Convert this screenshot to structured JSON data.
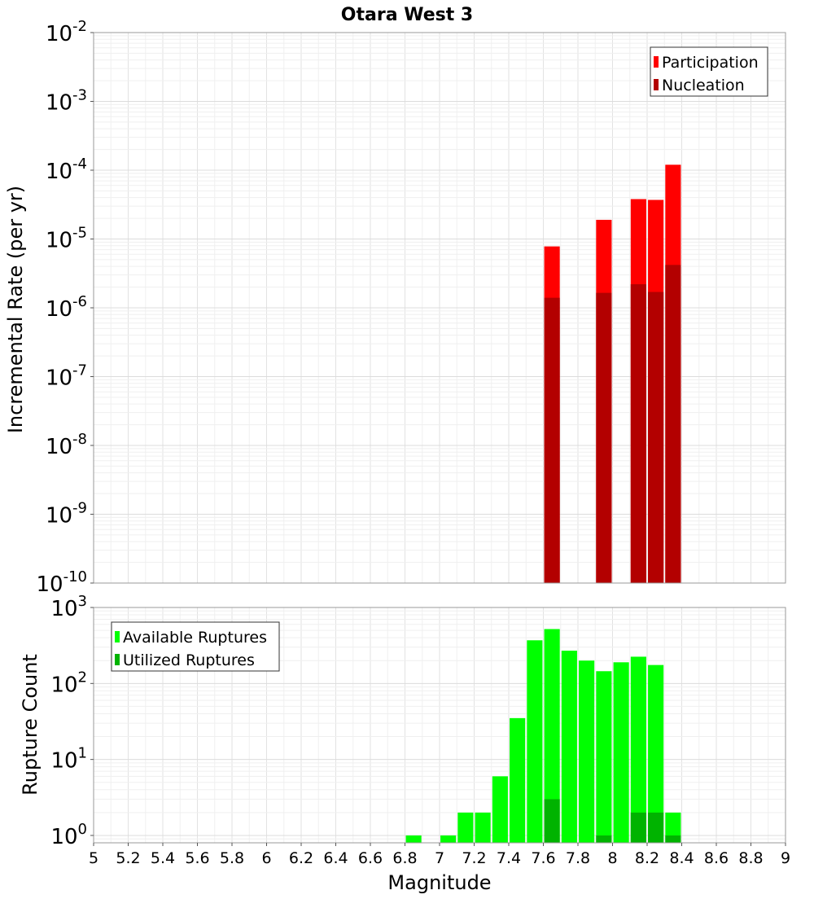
{
  "chart_data": [
    {
      "type": "bar",
      "title": "Otara West 3",
      "xlabel": "",
      "ylabel": "Incremental Rate (per yr)",
      "yscale": "log",
      "xlim": [
        5,
        9
      ],
      "ylim": [
        1e-10,
        0.01
      ],
      "y_tick_exponents": [
        "-10",
        "-9",
        "-8",
        "-7",
        "-6",
        "-5",
        "-4",
        "-3",
        "-2"
      ],
      "legend": {
        "placement": "top-right",
        "entries": [
          "Participation",
          "Nucleation"
        ]
      },
      "grid": true,
      "colors": {
        "Participation": "#ff0000",
        "Nucleation": "#b30000"
      },
      "x": [
        7.65,
        7.95,
        8.15,
        8.25,
        8.35
      ],
      "series": [
        {
          "name": "Participation",
          "values": [
            7.8e-06,
            1.9e-05,
            3.8e-05,
            3.7e-05,
            0.00012
          ]
        },
        {
          "name": "Nucleation",
          "values": [
            1.4e-06,
            1.65e-06,
            2.2e-06,
            1.7e-06,
            4.2e-06
          ]
        }
      ]
    },
    {
      "type": "bar",
      "title": "",
      "xlabel": "Magnitude",
      "ylabel": "Rupture Count",
      "yscale": "log",
      "xlim": [
        5,
        9
      ],
      "ylim": [
        0.8,
        1000
      ],
      "y_tick_exponents": [
        "0",
        "1",
        "2",
        "3"
      ],
      "x_tick_labels": [
        "5",
        "5.2",
        "5.4",
        "5.6",
        "5.8",
        "6",
        "6.2",
        "6.4",
        "6.6",
        "6.8",
        "7",
        "7.2",
        "7.4",
        "7.6",
        "7.8",
        "8",
        "8.2",
        "8.4",
        "8.6",
        "8.8",
        "9"
      ],
      "legend": {
        "placement": "top-left",
        "entries": [
          "Available Ruptures",
          "Utilized Ruptures"
        ]
      },
      "grid": true,
      "colors": {
        "Available Ruptures": "#00ff00",
        "Utilized Ruptures": "#00b300"
      },
      "series": [
        {
          "name": "Available Ruptures",
          "x": [
            6.85,
            7.05,
            7.15,
            7.25,
            7.35,
            7.45,
            7.55,
            7.65,
            7.75,
            7.85,
            7.95,
            8.05,
            8.15,
            8.25,
            8.35
          ],
          "values": [
            1,
            1,
            2,
            2,
            6,
            35,
            370,
            520,
            270,
            200,
            145,
            190,
            225,
            175,
            2
          ]
        },
        {
          "name": "Utilized Ruptures",
          "x": [
            7.65,
            7.95,
            8.15,
            8.25,
            8.35
          ],
          "values": [
            3,
            1,
            2,
            2,
            1
          ]
        }
      ]
    }
  ]
}
